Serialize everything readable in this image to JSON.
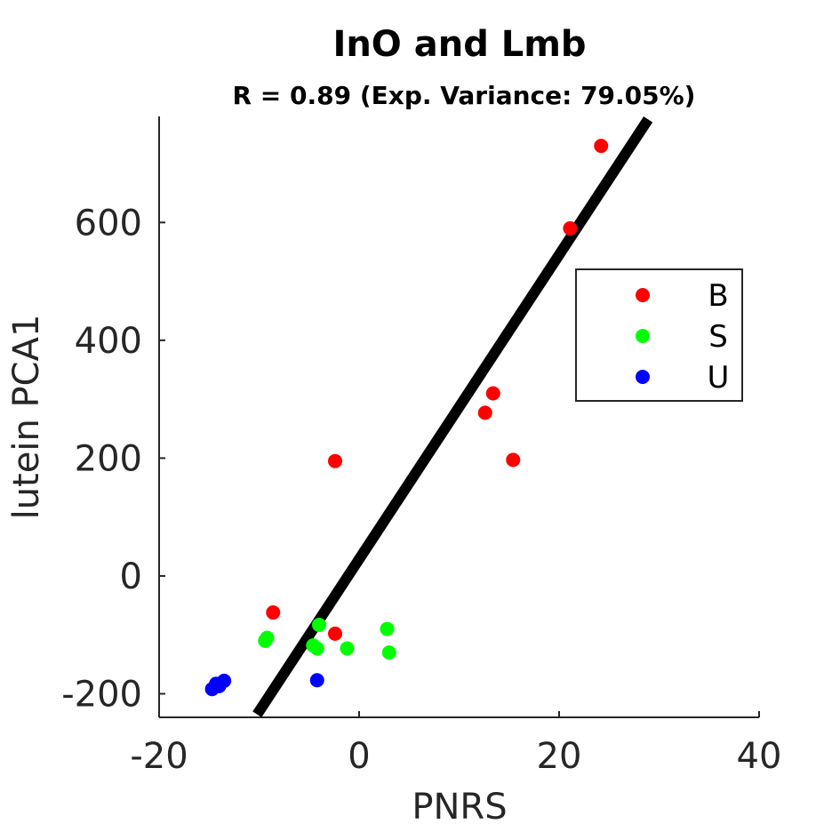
{
  "chart_data": {
    "type": "scatter",
    "title": "InO and Lmb",
    "subtitle": "R = 0.89 (Exp. Variance: 79.05%)",
    "xlabel": "PNRS",
    "ylabel": "lutein PCA1",
    "xlim": [
      -20,
      40
    ],
    "ylim": [
      -240,
      780
    ],
    "xticks": [
      -20,
      0,
      20,
      40
    ],
    "yticks": [
      -200,
      0,
      200,
      400,
      600
    ],
    "xtick_labels": [
      "-20",
      "0",
      "20",
      "40"
    ],
    "ytick_labels": [
      "-200",
      "0",
      "200",
      "400",
      "600"
    ],
    "grid": false,
    "legend_position": "right",
    "series": [
      {
        "name": "B",
        "color": "#ff0000",
        "points": [
          {
            "x": 24.2,
            "y": 730
          },
          {
            "x": 21.1,
            "y": 590
          },
          {
            "x": 13.4,
            "y": 310
          },
          {
            "x": 12.6,
            "y": 277
          },
          {
            "x": 15.4,
            "y": 197
          },
          {
            "x": -2.4,
            "y": 195
          },
          {
            "x": -8.6,
            "y": -62
          },
          {
            "x": -2.4,
            "y": -98
          }
        ]
      },
      {
        "name": "S",
        "color": "#00ff00",
        "points": [
          {
            "x": -4.0,
            "y": -83
          },
          {
            "x": 2.8,
            "y": -90
          },
          {
            "x": -9.2,
            "y": -105
          },
          {
            "x": -9.4,
            "y": -110
          },
          {
            "x": -4.6,
            "y": -118
          },
          {
            "x": -4.2,
            "y": -123
          },
          {
            "x": -1.2,
            "y": -123
          },
          {
            "x": 3.0,
            "y": -130
          }
        ]
      },
      {
        "name": "U",
        "color": "#0000ff",
        "points": [
          {
            "x": -4.2,
            "y": -177
          },
          {
            "x": -13.5,
            "y": -178
          },
          {
            "x": -14.3,
            "y": -183
          },
          {
            "x": -14.0,
            "y": -187
          },
          {
            "x": -14.7,
            "y": -192
          }
        ]
      }
    ],
    "fit_line": {
      "color": "#000000",
      "x": [
        -10.2,
        28.9
      ],
      "y": [
        -235,
        775
      ]
    }
  }
}
